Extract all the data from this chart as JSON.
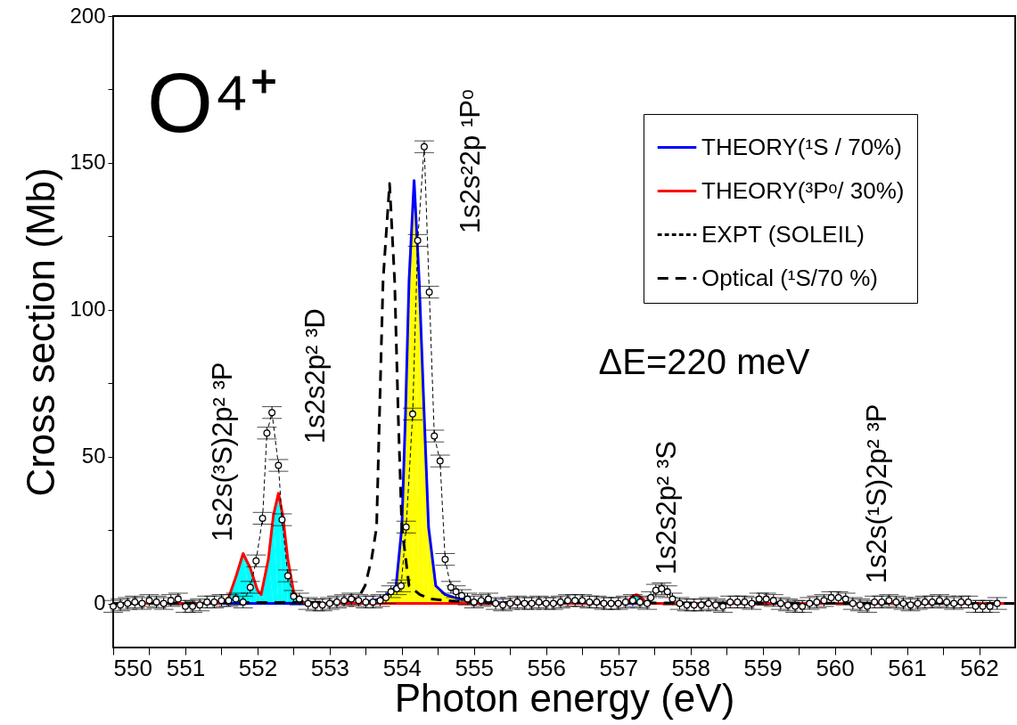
{
  "chart_data": {
    "type": "line",
    "xlabel": "Photon energy (eV)",
    "ylabel": "Cross section (Mb)",
    "xlim": [
      550,
      562.5
    ],
    "ylim": [
      -15,
      200
    ],
    "xticks": [
      550,
      {
        "value": 550.5,
        "label": null
      },
      551,
      {
        "value": 551.5,
        "label": null
      },
      552,
      {
        "value": 552.5,
        "label": null
      },
      553,
      {
        "value": 553.5,
        "label": null
      },
      554,
      {
        "value": 554.5,
        "label": null
      },
      555,
      {
        "value": 555.5,
        "label": null
      },
      556,
      {
        "value": 556.5,
        "label": null
      },
      557,
      {
        "value": 557.5,
        "label": null
      },
      558,
      {
        "value": 558.5,
        "label": null
      },
      559,
      {
        "value": 559.5,
        "label": null
      },
      560,
      {
        "value": 560.5,
        "label": null
      },
      561,
      {
        "value": 561.5,
        "label": null
      },
      562
    ],
    "yticks": [
      0,
      {
        "value": 25,
        "label": null
      },
      50,
      {
        "value": 75,
        "label": null
      },
      100,
      {
        "value": 125,
        "label": null
      },
      150,
      {
        "value": 175,
        "label": null
      },
      200
    ],
    "grid": false,
    "legend": "top right",
    "series": [
      {
        "type": "area",
        "color": "#ffff00",
        "x": [
          553.3,
          553.5,
          553.7,
          553.85,
          553.92,
          554.0,
          554.05,
          554.1,
          554.17,
          554.24,
          554.31,
          554.37,
          554.47,
          554.6,
          554.8,
          555.0,
          555.3,
          555.6
        ],
        "values": [
          0,
          0.5,
          1.5,
          4,
          6,
          26,
          64,
          110,
          144,
          110,
          64,
          26,
          6,
          3,
          1.5,
          0.8,
          0.3,
          0
        ]
      },
      {
        "type": "area",
        "color": "#00ffff",
        "x": [
          551.5,
          551.6,
          551.7,
          551.8,
          551.9,
          552.0,
          552.05,
          552.15,
          552.22,
          552.29,
          552.35,
          552.42,
          552.5,
          552.6,
          552.7,
          557.1,
          557.2,
          557.25,
          557.32,
          557.4
        ],
        "values": [
          0,
          2,
          9,
          17,
          12,
          4.5,
          3,
          15,
          30,
          37.5,
          30,
          15,
          4,
          0.5,
          0,
          0,
          2.5,
          3,
          2,
          0
        ]
      },
      {
        "name": "THEORY(¹S / 70%)",
        "color": "#0000ff",
        "line_style": "solid",
        "x": [
          550,
          553.3,
          553.5,
          553.7,
          553.85,
          553.92,
          554.0,
          554.05,
          554.1,
          554.17,
          554.24,
          554.31,
          554.37,
          554.47,
          554.6,
          554.8,
          555.0,
          555.3,
          555.6,
          562.5
        ],
        "values": [
          0,
          0,
          0.5,
          1.5,
          4,
          6,
          26,
          64,
          110,
          144,
          110,
          64,
          26,
          6,
          3,
          1.5,
          0.8,
          0.3,
          0,
          0
        ]
      },
      {
        "name": "THEORY(³Pᵒ/ 30%)",
        "color": "#ff0000",
        "line_style": "solid",
        "x": [
          550,
          551.5,
          551.6,
          551.7,
          551.8,
          551.9,
          552.0,
          552.05,
          552.15,
          552.22,
          552.29,
          552.35,
          552.42,
          552.5,
          552.6,
          552.7,
          557.1,
          557.2,
          557.25,
          557.32,
          557.4,
          562.5
        ],
        "values": [
          0,
          0,
          2,
          9,
          17,
          12,
          4.5,
          3,
          15,
          30,
          37.5,
          30,
          15,
          4,
          0.5,
          0,
          0,
          2.5,
          3,
          2,
          0,
          0
        ]
      },
      {
        "name": "EXPT (SOLEIL)",
        "color": "#000000",
        "line_style": "dashed",
        "marker": "circle",
        "x": [
          550.0,
          550.1,
          550.2,
          550.3,
          550.4,
          550.5,
          550.6,
          550.7,
          550.8,
          550.9,
          551.0,
          551.1,
          551.2,
          551.3,
          551.4,
          551.5,
          551.6,
          551.7,
          551.8,
          551.9,
          551.98,
          552.07,
          552.13,
          552.2,
          552.29,
          552.34,
          552.42,
          552.5,
          552.58,
          552.7,
          552.8,
          552.9,
          553.0,
          553.1,
          553.2,
          553.3,
          553.4,
          553.5,
          553.6,
          553.7,
          553.78,
          553.85,
          553.93,
          553.99,
          554.06,
          554.15,
          554.22,
          554.31,
          554.38,
          554.45,
          554.53,
          554.6,
          554.68,
          554.75,
          554.83,
          554.91,
          555.0,
          555.1,
          555.2,
          555.3,
          555.4,
          555.5,
          555.6,
          555.7,
          555.8,
          555.9,
          556.0,
          556.1,
          556.2,
          556.3,
          556.4,
          556.5,
          556.6,
          556.7,
          556.8,
          556.9,
          557.0,
          557.1,
          557.2,
          557.3,
          557.4,
          557.45,
          557.52,
          557.6,
          557.68,
          557.75,
          557.85,
          557.95,
          558.05,
          558.15,
          558.25,
          558.35,
          558.45,
          558.55,
          558.65,
          558.75,
          558.85,
          558.95,
          559.05,
          559.15,
          559.25,
          559.35,
          559.45,
          559.55,
          559.65,
          559.75,
          559.85,
          559.95,
          560.05,
          560.15,
          560.25,
          560.35,
          560.45,
          560.55,
          560.65,
          560.75,
          560.85,
          560.95,
          561.05,
          561.15,
          561.25,
          561.35,
          561.45,
          561.55,
          561.65,
          561.75,
          561.85,
          561.95,
          562.05,
          562.15,
          562.25
        ],
        "values": [
          -1,
          -0.5,
          0,
          0.5,
          0,
          1,
          0.5,
          0,
          1,
          1.5,
          -1,
          -1,
          -0.5,
          0.5,
          0.5,
          1,
          1,
          1.5,
          0.5,
          5.5,
          14.5,
          29,
          58,
          65,
          47,
          28.5,
          9.4,
          2.4,
          1.5,
          0,
          -0.5,
          -0.5,
          0,
          0.5,
          1,
          1.5,
          1,
          0.5,
          0.5,
          1,
          2,
          4,
          5,
          6,
          26,
          64.5,
          123.6,
          155.5,
          106,
          57,
          48.5,
          15,
          5.5,
          4,
          2.7,
          1.5,
          0.5,
          1,
          1.5,
          0,
          -0.5,
          0,
          0.5,
          0,
          0,
          0.5,
          0,
          0,
          0.5,
          1,
          1,
          1,
          0.5,
          0.5,
          0,
          0,
          0,
          0.5,
          1,
          0.5,
          0,
          2,
          4.5,
          5,
          4,
          1.5,
          0,
          -0.5,
          -0.5,
          -0.5,
          0,
          -0.5,
          -1,
          0.5,
          0.5,
          0.5,
          0,
          1.5,
          1.5,
          1,
          0,
          -0.5,
          -1,
          -1,
          0,
          0.5,
          1,
          2,
          2,
          1.5,
          0,
          -0.5,
          -1,
          0.5,
          0.5,
          1,
          0.5,
          0,
          -0.5,
          0,
          0.5,
          0.5,
          1,
          0.5,
          0,
          0.5,
          0.5,
          -1,
          -1,
          -1,
          0
        ],
        "errors": [
          2,
          2,
          2,
          2,
          2,
          2,
          2,
          2,
          2,
          2,
          2,
          2,
          2,
          2,
          2,
          2,
          2,
          2,
          2,
          2,
          2,
          2,
          2,
          2,
          2,
          2,
          2,
          2,
          2,
          2,
          2,
          2,
          2,
          2,
          2,
          2,
          2,
          2,
          2,
          2,
          2,
          2,
          2,
          2,
          2,
          2,
          2,
          2,
          2,
          2,
          2,
          2,
          2,
          2,
          2,
          2,
          2,
          2,
          2,
          2,
          2,
          2,
          2,
          2,
          2,
          2,
          2,
          2,
          2,
          2,
          2,
          2,
          2,
          2,
          2,
          2,
          2,
          2,
          2,
          2,
          2,
          2,
          2,
          2,
          2,
          2,
          2,
          2,
          2,
          2,
          2,
          2,
          2,
          2,
          2,
          2,
          2,
          2,
          2,
          2,
          2,
          2,
          2,
          2,
          2,
          2,
          2,
          2,
          2,
          2,
          2,
          2,
          2,
          2,
          2,
          2,
          2,
          2,
          2,
          2,
          2,
          2,
          2,
          2,
          2,
          2,
          2,
          2,
          2,
          2,
          2
        ]
      },
      {
        "name": "Optical (¹S/70 %)",
        "color": "#000000",
        "line_style": "dashed",
        "x": [
          550,
          553.2,
          553.4,
          553.49,
          553.58,
          553.65,
          553.69,
          553.74,
          553.83,
          553.9,
          553.95,
          554.0,
          554.1,
          554.25,
          554.4,
          554.62,
          555.0,
          562.5
        ],
        "values": [
          0,
          0.5,
          2,
          6,
          15,
          26,
          64,
          110,
          143,
          110,
          64,
          26,
          6,
          3,
          1.5,
          1,
          0.3,
          0
        ]
      }
    ],
    "annotations": [
      "O⁴⁺",
      "ΔE=220 meV",
      "1s2s(³S)2p² ³P",
      "1s2s2p² ³D",
      "1s2s²2p ¹Pᵒ",
      "1s2s2p² ³S",
      "1s2s(¹S)2p² ³P"
    ]
  }
}
